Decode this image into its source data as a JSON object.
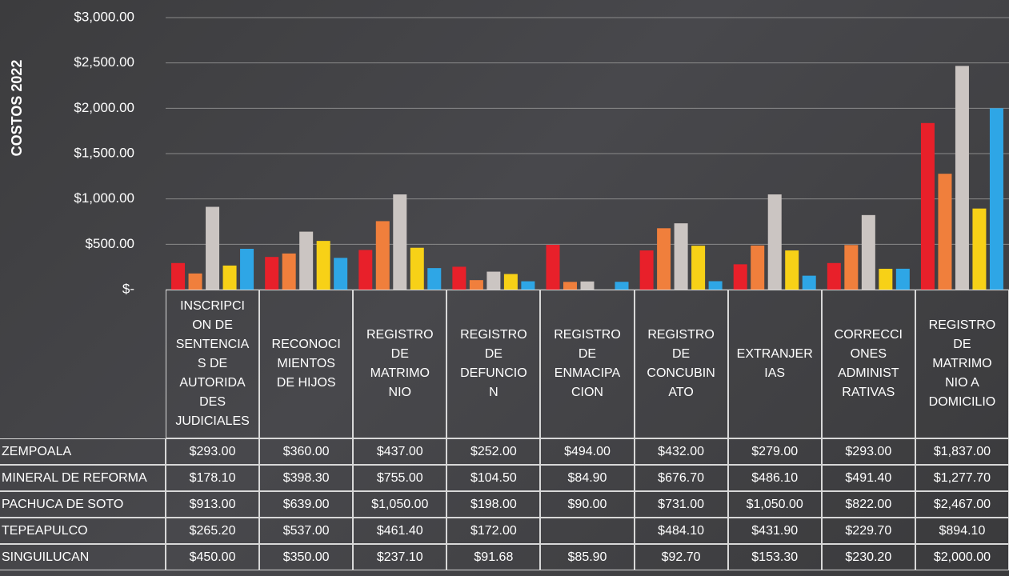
{
  "chart_data": {
    "type": "bar",
    "y_axis_label": "COSTOS 2022",
    "categories": [
      "INSCRIPCI\nON DE\nSENTENCIA\nS DE\nAUTORIDA\nDES\nJUDICIALES",
      "RECONOCI\nMIENTOS\nDE HIJOS",
      "REGISTRO\nDE\nMATRIMO\nNIO",
      "REGISTRO\nDE\nDEFUNCIO\nN",
      "REGISTRO\nDE\nENMACIPA\nCION",
      "REGISTRO\nDE\nCONCUBIN\nATO",
      "EXTRANJER\nIAS",
      "CORRECCI\nONES\nADMINIST\nRATIVAS",
      "REGISTRO\nDE\nMATRIMO\nNIO A\nDOMICILIO"
    ],
    "series": [
      {
        "name": "ZEMPOALA",
        "color": "#e8202a",
        "values": [
          293,
          360,
          437,
          252,
          494,
          432,
          279,
          293,
          1837
        ],
        "value_labels": [
          "$293.00",
          "$360.00",
          "$437.00",
          "$252.00",
          "$494.00",
          "$432.00",
          "$279.00",
          "$293.00",
          "$1,837.00"
        ]
      },
      {
        "name": "MINERAL DE REFORMA",
        "color": "#f07f3c",
        "values": [
          178.1,
          398.3,
          755,
          104.5,
          84.9,
          676.7,
          486.1,
          491.4,
          1277.7
        ],
        "value_labels": [
          "$178.10",
          "$398.30",
          "$755.00",
          "$104.50",
          "$84.90",
          "$676.70",
          "$486.10",
          "$491.40",
          "$1,277.70"
        ]
      },
      {
        "name": "PACHUCA DE SOTO",
        "color": "#cbc5c2",
        "values": [
          913,
          639,
          1050,
          198,
          90,
          731,
          1050,
          822,
          2467
        ],
        "value_labels": [
          "$913.00",
          "$639.00",
          "$1,050.00",
          "$198.00",
          "$90.00",
          "$731.00",
          "$1,050.00",
          "$822.00",
          "$2,467.00"
        ]
      },
      {
        "name": "TEPEAPULCO",
        "color": "#f7d117",
        "values": [
          265.2,
          537,
          461.4,
          172,
          null,
          484.1,
          431.9,
          229.7,
          894.1
        ],
        "value_labels": [
          "$265.20",
          "$537.00",
          "$461.40",
          "$172.00",
          null,
          "$484.10",
          "$431.90",
          "$229.70",
          "$894.10"
        ]
      },
      {
        "name": "SINGUILUCAN",
        "color": "#2ea6e6",
        "values": [
          450,
          350,
          237.1,
          91.68,
          85.9,
          92.7,
          153.3,
          230.2,
          2000
        ],
        "value_labels": [
          "$450.00",
          "$350.00",
          "$237.10",
          "$91.68",
          "$85.90",
          "$92.70",
          "$153.30",
          "$230.20",
          "$2,000.00"
        ]
      }
    ],
    "ylim": [
      0,
      3000
    ],
    "yticks": [
      {
        "value": 0,
        "label": "$-"
      },
      {
        "value": 500,
        "label": "$500.00"
      },
      {
        "value": 1000,
        "label": "$1,000.00"
      },
      {
        "value": 1500,
        "label": "$1,500.00"
      },
      {
        "value": 2000,
        "label": "$2,000.00"
      },
      {
        "value": 2500,
        "label": "$2,500.00"
      },
      {
        "value": 3000,
        "label": "$3,000.00"
      }
    ],
    "grid": true
  }
}
